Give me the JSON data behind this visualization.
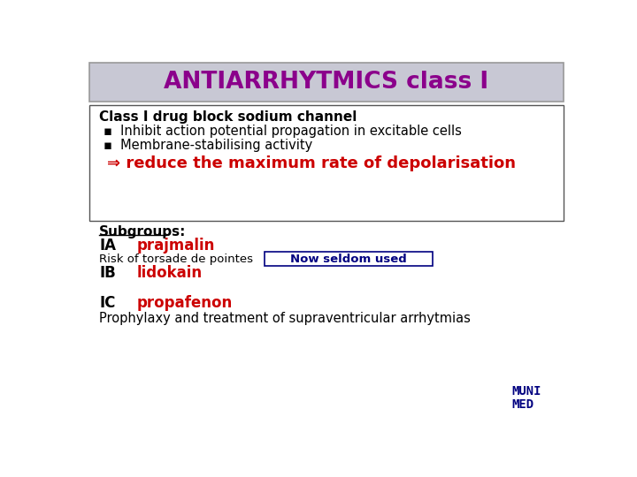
{
  "title": "ANTIARRHYTMICS class I",
  "title_color": "#8B008B",
  "title_bg_color": "#C8C8D4",
  "title_fontsize": 19,
  "bg_color": "#FFFFFF",
  "line1_bold": "Class I drug block sodium channel",
  "bullet1": "Inhibit action potential propagation in excitable cells",
  "bullet2": "Membrane-stabilising activity",
  "arrow_text": "⇒ reduce the maximum rate of depolarisation",
  "arrow_color": "#CC0000",
  "subgroups_label": "Subgroups:",
  "ia_label": "IA",
  "ia_drug": "prajmalin",
  "drug_color": "#CC0000",
  "risk_text": "Risk of torsade de pointes",
  "now_seldom": "Now seldom used",
  "now_seldom_color": "#000080",
  "ib_label": "IB",
  "ib_drug": "lidokain",
  "ic_label": "IC",
  "ic_drug": "propafenon",
  "prophyl_text": "Prophylaxy and treatment of supraventricular arrhytmias",
  "muni_color": "#000080"
}
